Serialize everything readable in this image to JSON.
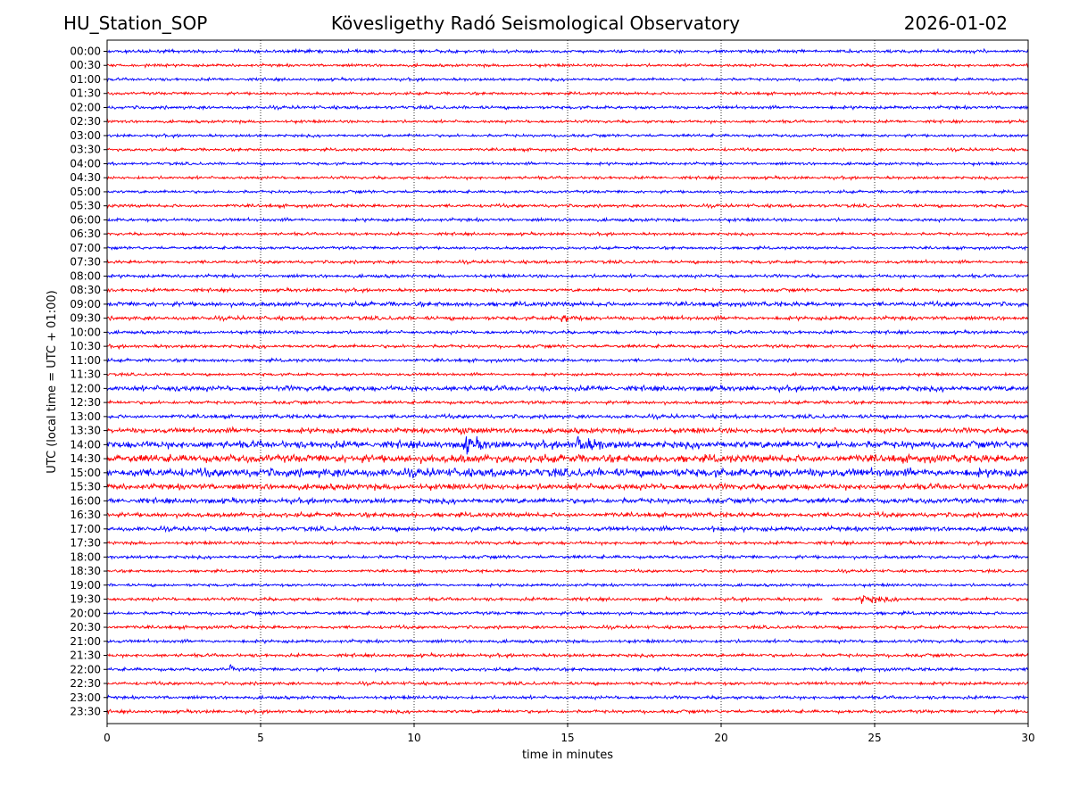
{
  "header": {
    "station": "HU_Station_SOP",
    "observatory": "Kövesligethy Radó Seismological Observatory",
    "date": "2026-01-02"
  },
  "chart_data": {
    "type": "line",
    "title": "Kövesligethy Radó Seismological Observatory",
    "xlabel": "time in minutes",
    "ylabel": "UTC (local time = UTC + 01:00)",
    "xlim": [
      0,
      30
    ],
    "x_ticks": [
      0,
      5,
      10,
      15,
      20,
      25,
      30
    ],
    "grid": "vertical dotted at 5-minute ticks",
    "row_colors": [
      "#0000ff",
      "#ff0000"
    ],
    "rows": [
      "00:00",
      "00:30",
      "01:00",
      "01:30",
      "02:00",
      "02:30",
      "03:00",
      "03:30",
      "04:00",
      "04:30",
      "05:00",
      "05:30",
      "06:00",
      "06:30",
      "07:00",
      "07:30",
      "08:00",
      "08:30",
      "09:00",
      "09:30",
      "10:00",
      "10:30",
      "11:00",
      "11:30",
      "12:00",
      "12:30",
      "13:00",
      "13:30",
      "14:00",
      "14:30",
      "15:00",
      "15:30",
      "16:00",
      "16:30",
      "17:00",
      "17:30",
      "18:00",
      "18:30",
      "19:00",
      "19:30",
      "20:00",
      "20:30",
      "21:00",
      "21:30",
      "22:00",
      "22:30",
      "23:00",
      "23:30"
    ],
    "noise_amplitude": [
      0.25,
      0.22,
      0.22,
      0.22,
      0.25,
      0.22,
      0.22,
      0.22,
      0.22,
      0.22,
      0.22,
      0.25,
      0.25,
      0.22,
      0.22,
      0.25,
      0.25,
      0.25,
      0.35,
      0.3,
      0.25,
      0.25,
      0.25,
      0.22,
      0.4,
      0.25,
      0.3,
      0.4,
      0.55,
      0.6,
      0.65,
      0.45,
      0.4,
      0.35,
      0.35,
      0.25,
      0.25,
      0.22,
      0.22,
      0.25,
      0.25,
      0.25,
      0.25,
      0.25,
      0.25,
      0.25,
      0.25,
      0.25
    ],
    "events": [
      {
        "row": "09:30",
        "start_min": 14.8,
        "end_min": 16.2,
        "amplitude": 0.9
      },
      {
        "row": "12:00",
        "start_min": 2.2,
        "end_min": 2.8,
        "amplitude": 0.9
      },
      {
        "row": "12:00",
        "start_min": 19.5,
        "end_min": 20.0,
        "amplitude": 0.7
      },
      {
        "row": "13:30",
        "start_min": 11.5,
        "end_min": 12.3,
        "amplitude": 1.6
      },
      {
        "row": "14:00",
        "start_min": 11.6,
        "end_min": 13.4,
        "amplitude": 1.8
      },
      {
        "row": "14:00",
        "start_min": 15.3,
        "end_min": 17.3,
        "amplitude": 1.8
      },
      {
        "row": "14:30",
        "start_min": 11.5,
        "end_min": 12.5,
        "amplitude": 1.0
      },
      {
        "row": "15:00",
        "start_min": 1.0,
        "end_min": 2.0,
        "amplitude": 1.0
      },
      {
        "row": "17:00",
        "start_min": 19.7,
        "end_min": 20.5,
        "amplitude": 1.0
      },
      {
        "row": "19:30",
        "start_min": 24.5,
        "end_min": 26.8,
        "amplitude": 0.9
      },
      {
        "row": "22:00",
        "start_min": 4.0,
        "end_min": 4.15,
        "amplitude": 1.3
      }
    ],
    "gaps": [
      {
        "row": "19:30",
        "start_min": 23.3,
        "end_min": 23.6
      }
    ]
  }
}
